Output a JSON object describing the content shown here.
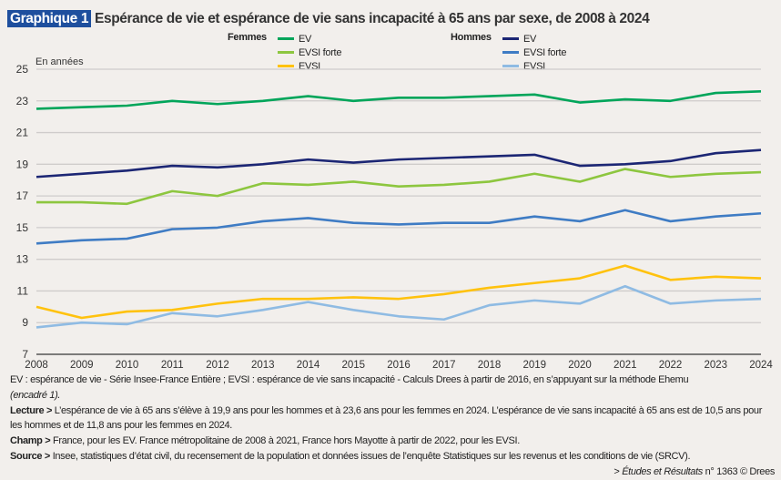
{
  "title": {
    "badge": "Graphique 1",
    "text": "Espérance de vie et espérance de vie sans incapacité à 65 ans par sexe, de 2008 à 2024"
  },
  "legend": {
    "groups": [
      {
        "label": "Femmes",
        "items": [
          {
            "label": "EV",
            "color": "#00a55a"
          },
          {
            "label": "EVSI forte",
            "color": "#8dc63f"
          },
          {
            "label": "EVSI",
            "color": "#ffc20e"
          }
        ]
      },
      {
        "label": "Hommes",
        "items": [
          {
            "label": "EV",
            "color": "#1c2674"
          },
          {
            "label": "EVSI forte",
            "color": "#3f7cc4"
          },
          {
            "label": "EVSI",
            "color": "#8fbbe3"
          }
        ]
      }
    ]
  },
  "chart_data": {
    "type": "line",
    "ylabel": "En années",
    "ylim": [
      7,
      25
    ],
    "yticks": [
      7,
      9,
      11,
      13,
      15,
      17,
      19,
      21,
      23,
      25
    ],
    "grid": true,
    "legend_position": "top",
    "x": [
      2008,
      2009,
      2010,
      2011,
      2012,
      2013,
      2014,
      2015,
      2016,
      2017,
      2018,
      2019,
      2020,
      2021,
      2022,
      2023,
      2024
    ],
    "series": [
      {
        "name": "Femmes EV",
        "color": "#00a55a",
        "values": [
          22.5,
          22.6,
          22.7,
          23.0,
          22.8,
          23.0,
          23.3,
          23.0,
          23.2,
          23.2,
          23.3,
          23.4,
          22.9,
          23.1,
          23.0,
          23.5,
          23.6
        ]
      },
      {
        "name": "Hommes EV",
        "color": "#1c2674",
        "values": [
          18.2,
          18.4,
          18.6,
          18.9,
          18.8,
          19.0,
          19.3,
          19.1,
          19.3,
          19.4,
          19.5,
          19.6,
          18.9,
          19.0,
          19.2,
          19.7,
          19.9
        ]
      },
      {
        "name": "Femmes EVSI forte",
        "color": "#8dc63f",
        "values": [
          16.6,
          16.6,
          16.5,
          17.3,
          17.0,
          17.8,
          17.7,
          17.9,
          17.6,
          17.7,
          17.9,
          18.4,
          17.9,
          18.7,
          18.2,
          18.4,
          18.5
        ]
      },
      {
        "name": "Hommes EVSI forte",
        "color": "#3f7cc4",
        "values": [
          14.0,
          14.2,
          14.3,
          14.9,
          15.0,
          15.4,
          15.6,
          15.3,
          15.2,
          15.3,
          15.3,
          15.7,
          15.4,
          16.1,
          15.4,
          15.7,
          15.9
        ]
      },
      {
        "name": "Femmes EVSI",
        "color": "#ffc20e",
        "values": [
          10.0,
          9.3,
          9.7,
          9.8,
          10.2,
          10.5,
          10.5,
          10.6,
          10.5,
          10.8,
          11.2,
          11.5,
          11.8,
          12.6,
          11.7,
          11.9,
          11.8
        ]
      },
      {
        "name": "Hommes EVSI",
        "color": "#8fbbe3",
        "values": [
          8.7,
          9.0,
          8.9,
          9.6,
          9.4,
          9.8,
          10.3,
          9.8,
          9.4,
          9.2,
          10.1,
          10.4,
          10.2,
          11.3,
          10.2,
          10.4,
          10.5
        ]
      }
    ]
  },
  "notes": {
    "definitions": "EV : espérance de vie - Série Insee-France Entière ; EVSI : espérance de vie sans incapacité - Calculs Drees à partir de 2016, en s’appuyant sur la méthode Ehemu",
    "definitions_ref": "(encadré 1).",
    "lecture_label": "Lecture >",
    "lecture": " L’espérance de vie à 65 ans s’élève à 19,9 ans pour les hommes et à 23,6 ans pour les femmes en 2024. L’espérance de vie sans incapacité à 65 ans est de 10,5 ans pour les hommes et de 11,8 ans pour les femmes en 2024.",
    "champ_label": "Champ >",
    "champ": " France, pour les EV. France métropolitaine de 2008 à 2021, France hors Mayotte à partir de 2022, pour les EVSI.",
    "source_label": "Source >",
    "source": " Insee, statistiques d’état civil, du recensement de la population et données issues de l’enquête Statistiques sur les revenus et les conditions de vie (SRCV).",
    "credit_prefix": "> ",
    "credit_pub": "Études et Résultats",
    "credit_rest": " n° 1363 © Drees"
  }
}
